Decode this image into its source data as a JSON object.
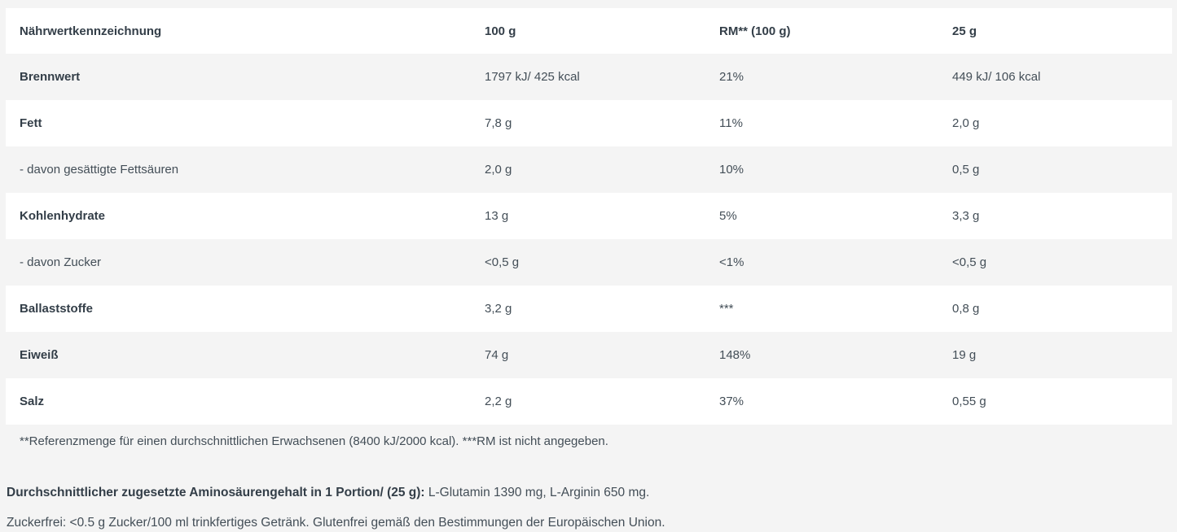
{
  "colors": {
    "page_background": "#f4f4f4",
    "row_white": "#ffffff",
    "text_regular": "#434e57",
    "text_bold": "#333e48"
  },
  "table": {
    "columns": [
      "Nährwertkennzeichnung",
      "100 g",
      "RM** (100 g)",
      "25 g"
    ],
    "rows": [
      {
        "label": "Brennwert",
        "bold": true,
        "per_100g": "1797 kJ/ 425 kcal",
        "rm_100g": "21%",
        "per_25g": "449 kJ/ 106 kcal"
      },
      {
        "label": "Fett",
        "bold": true,
        "per_100g": "7,8 g",
        "rm_100g": "11%",
        "per_25g": "2,0 g"
      },
      {
        "label": "- davon gesättigte Fettsäuren",
        "bold": false,
        "per_100g": "2,0 g",
        "rm_100g": "10%",
        "per_25g": "0,5 g"
      },
      {
        "label": "Kohlenhydrate",
        "bold": true,
        "per_100g": "13 g",
        "rm_100g": "5%",
        "per_25g": "3,3 g"
      },
      {
        "label": "- davon Zucker",
        "bold": false,
        "per_100g": "<0,5 g",
        "rm_100g": "<1%",
        "per_25g": "<0,5 g"
      },
      {
        "label": "Ballaststoffe",
        "bold": true,
        "per_100g": "3,2 g",
        "rm_100g": "***",
        "per_25g": "0,8 g"
      },
      {
        "label": "Eiweiß",
        "bold": true,
        "per_100g": "74 g",
        "rm_100g": "148%",
        "per_25g": "19 g"
      },
      {
        "label": "Salz",
        "bold": true,
        "per_100g": "2,2 g",
        "rm_100g": "37%",
        "per_25g": "0,55 g"
      }
    ],
    "footnote": "**Referenzmenge für einen durchschnittlichen Erwachsenen (8400 kJ/2000 kcal). ***RM ist nicht angegeben."
  },
  "notes": {
    "amino_label": "Durchschnittlicher zugesetzte Aminosäurengehalt in 1 Portion/ (25 g):",
    "amino_values": " L-Glutamin 1390 mg, L-Arginin 650 mg.",
    "sugarfree": "Zuckerfrei: <0.5 g Zucker/100 ml trinkfertiges Getränk. Glutenfrei gemäß den Bestimmungen der Europäischen Union."
  }
}
